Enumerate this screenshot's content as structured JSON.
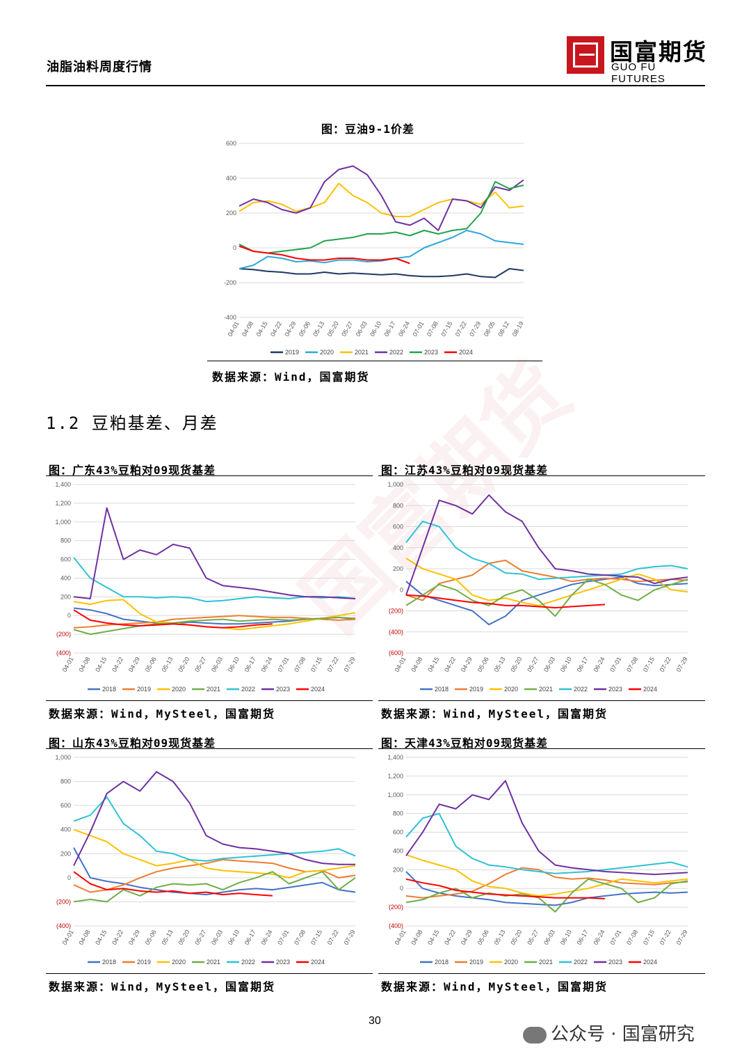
{
  "header": {
    "title": "油脂油料周度行情",
    "logo_cn": "国富期货",
    "logo_en": "GUO FU FUTURES"
  },
  "section_heading": "1.2 豆粕基差、月差",
  "footer": {
    "page": "30",
    "wechat": "公众号 · 国富研究"
  },
  "colors": {
    "2018": "#4472c4",
    "2019": "#ed7d31",
    "2020": "#ffc000",
    "2021": "#70ad47",
    "2022": "#2ec2d6",
    "2023": "#7030a0",
    "2024": "#ff0000",
    "brand": "#c8161e"
  },
  "chart_data": [
    {
      "id": "c1",
      "type": "line",
      "title": "图：豆油9-1价差",
      "source": "数据来源：Wind，国富期货",
      "x_ticks": [
        "04-01",
        "04-08",
        "04-15",
        "04-22",
        "04-29",
        "05-06",
        "05-13",
        "05-20",
        "05-27",
        "06-03",
        "06-10",
        "06-17",
        "06-24",
        "07-01",
        "07-08",
        "07-15",
        "07-22",
        "07-29",
        "08-05",
        "08-12",
        "08-19"
      ],
      "ylim": [
        -400,
        600
      ],
      "y_ticks": [
        "-400",
        "-200",
        "0",
        "200",
        "400",
        "600"
      ],
      "series": [
        {
          "name": "2019",
          "color": "#1f3864",
          "values": [
            -120,
            -125,
            -135,
            -140,
            -150,
            -150,
            -140,
            -150,
            -145,
            -150,
            -155,
            -150,
            -160,
            -165,
            -165,
            -160,
            -150,
            -165,
            -170,
            -120,
            -130
          ]
        },
        {
          "name": "2020",
          "color": "#2ea8d8",
          "values": [
            -120,
            -100,
            -50,
            -60,
            -80,
            -75,
            -85,
            -70,
            -70,
            -80,
            -75,
            -60,
            -50,
            0,
            30,
            60,
            100,
            80,
            40,
            30,
            20
          ]
        },
        {
          "name": "2021",
          "color": "#ffc000",
          "values": [
            210,
            260,
            270,
            250,
            210,
            230,
            260,
            370,
            300,
            260,
            200,
            180,
            180,
            220,
            260,
            280,
            270,
            250,
            320,
            230,
            240
          ]
        },
        {
          "name": "2022",
          "color": "#7030a0",
          "values": [
            240,
            280,
            260,
            220,
            200,
            230,
            380,
            450,
            470,
            420,
            300,
            150,
            130,
            170,
            100,
            280,
            270,
            230,
            350,
            330,
            390
          ]
        },
        {
          "name": "2023",
          "color": "#21a24a",
          "values": [
            20,
            -20,
            -30,
            -20,
            -10,
            0,
            40,
            50,
            60,
            80,
            80,
            90,
            70,
            100,
            80,
            100,
            110,
            200,
            380,
            340,
            360
          ]
        },
        {
          "name": "2024",
          "color": "#ff0000",
          "values": [
            10,
            -20,
            -30,
            -40,
            -60,
            -70,
            -70,
            -60,
            -60,
            -70,
            -70,
            -60,
            -90,
            null,
            null,
            null,
            null,
            null,
            null,
            null,
            null
          ]
        }
      ]
    },
    {
      "id": "c2",
      "type": "line",
      "title": "图：广东43%豆粕对09现货基差",
      "source": "数据来源：Wind，MySteel，国富期货",
      "x_ticks": [
        "04-01",
        "04-08",
        "04-15",
        "04-22",
        "04-29",
        "05-06",
        "05-13",
        "05-20",
        "05-27",
        "06-03",
        "06-10",
        "06-17",
        "06-24",
        "07-01",
        "07-08",
        "07-15",
        "07-22",
        "07-29"
      ],
      "ylim": [
        -400,
        1400
      ],
      "y_ticks": [
        "(400)",
        "(200)",
        "0",
        "200",
        "400",
        "600",
        "800",
        "1,000",
        "1,200",
        "1,400"
      ],
      "series": [
        {
          "name": "2018",
          "values": [
            80,
            60,
            20,
            -40,
            -60,
            -80,
            -90,
            -70,
            -80,
            -90,
            -90,
            -80,
            -70,
            -60,
            -40,
            -30,
            -20,
            -40
          ]
        },
        {
          "name": "2019",
          "values": [
            -130,
            -120,
            -100,
            -90,
            -80,
            -70,
            -40,
            -30,
            -20,
            -10,
            0,
            -10,
            -20,
            -20,
            -30,
            -40,
            -50,
            -40
          ]
        },
        {
          "name": "2020",
          "values": [
            150,
            120,
            160,
            170,
            20,
            -70,
            -80,
            -100,
            -120,
            -130,
            -150,
            -130,
            -110,
            -90,
            -60,
            -30,
            0,
            30
          ]
        },
        {
          "name": "2021",
          "values": [
            -150,
            -200,
            -170,
            -140,
            -110,
            -90,
            -80,
            -60,
            -50,
            -40,
            -60,
            -50,
            -40,
            -50,
            -40,
            -30,
            -20,
            -30
          ]
        },
        {
          "name": "2022",
          "values": [
            620,
            400,
            300,
            200,
            200,
            190,
            200,
            190,
            150,
            160,
            180,
            200,
            190,
            180,
            200,
            190,
            200,
            180
          ]
        },
        {
          "name": "2023",
          "values": [
            200,
            180,
            1150,
            600,
            700,
            650,
            760,
            720,
            400,
            320,
            300,
            280,
            250,
            220,
            200,
            200,
            190,
            180
          ]
        },
        {
          "name": "2024",
          "values": [
            60,
            -50,
            -80,
            -100,
            -110,
            -100,
            -90,
            -100,
            -120,
            -130,
            -120,
            -100,
            -90,
            null,
            null,
            null,
            null,
            null
          ]
        }
      ]
    },
    {
      "id": "c3",
      "type": "line",
      "title": "图：江苏43%豆粕对09现货基差",
      "source": "数据来源：Wind，MySteel，国富期货",
      "x_ticks": [
        "04-01",
        "04-08",
        "04-15",
        "04-22",
        "04-29",
        "05-06",
        "05-13",
        "05-20",
        "05-27",
        "06-03",
        "06-10",
        "06-17",
        "06-24",
        "07-01",
        "07-08",
        "07-15",
        "07-22",
        "07-29"
      ],
      "ylim": [
        -600,
        1000
      ],
      "y_ticks": [
        "(600)",
        "(400)",
        "(200)",
        "0",
        "200",
        "400",
        "600",
        "800",
        "1,000"
      ],
      "series": [
        {
          "name": "2018",
          "values": [
            80,
            -50,
            -100,
            -150,
            -200,
            -330,
            -250,
            -100,
            -50,
            0,
            50,
            80,
            100,
            120,
            60,
            40,
            50,
            60
          ]
        },
        {
          "name": "2019",
          "values": [
            -50,
            -100,
            60,
            100,
            140,
            250,
            280,
            180,
            150,
            120,
            80,
            100,
            110,
            100,
            80,
            90,
            100,
            90
          ]
        },
        {
          "name": "2020",
          "values": [
            300,
            200,
            150,
            100,
            -50,
            -100,
            -80,
            -120,
            -150,
            -100,
            -50,
            0,
            50,
            100,
            150,
            100,
            0,
            -20
          ]
        },
        {
          "name": "2021",
          "values": [
            -150,
            -50,
            50,
            0,
            -100,
            -150,
            -50,
            0,
            -100,
            -250,
            -50,
            100,
            50,
            -50,
            -100,
            0,
            50,
            100
          ]
        },
        {
          "name": "2022",
          "values": [
            450,
            650,
            600,
            400,
            300,
            250,
            160,
            150,
            100,
            110,
            120,
            130,
            140,
            150,
            200,
            220,
            230,
            200
          ]
        },
        {
          "name": "2023",
          "values": [
            -50,
            400,
            850,
            800,
            720,
            900,
            740,
            650,
            400,
            200,
            180,
            150,
            140,
            130,
            120,
            60,
            100,
            120
          ]
        },
        {
          "name": "2024",
          "values": [
            -50,
            -60,
            -80,
            -100,
            -120,
            -130,
            -150,
            -150,
            -160,
            -170,
            -160,
            -150,
            -140,
            null,
            null,
            null,
            null,
            null
          ]
        }
      ]
    },
    {
      "id": "c4",
      "type": "line",
      "title": "图：山东43%豆粕对09现货基差",
      "source": "数据来源：Wind，MySteel，国富期货",
      "x_ticks": [
        "04-01",
        "04-08",
        "04-15",
        "04-22",
        "04-29",
        "05-06",
        "05-13",
        "05-20",
        "05-27",
        "06-03",
        "06-10",
        "06-17",
        "06-24",
        "07-01",
        "07-08",
        "07-15",
        "07-22",
        "07-29"
      ],
      "ylim": [
        -400,
        1000
      ],
      "y_ticks": [
        "(400)",
        "(200)",
        "0",
        "200",
        "400",
        "600",
        "800",
        "1,000"
      ],
      "series": [
        {
          "name": "2018",
          "values": [
            250,
            0,
            -30,
            -50,
            -80,
            -100,
            -120,
            -130,
            -140,
            -120,
            -100,
            -90,
            -100,
            -80,
            -60,
            -40,
            -100,
            -120
          ]
        },
        {
          "name": "2019",
          "values": [
            -60,
            -120,
            -100,
            -60,
            0,
            50,
            80,
            100,
            120,
            150,
            140,
            130,
            120,
            80,
            50,
            60,
            0,
            20
          ]
        },
        {
          "name": "2020",
          "values": [
            400,
            350,
            300,
            200,
            150,
            100,
            120,
            150,
            80,
            60,
            50,
            40,
            30,
            0,
            50,
            60,
            80,
            100
          ]
        },
        {
          "name": "2021",
          "values": [
            -200,
            -180,
            -200,
            -100,
            -150,
            -80,
            -50,
            -60,
            -50,
            -100,
            -40,
            0,
            50,
            -50,
            0,
            50,
            -100,
            0
          ]
        },
        {
          "name": "2022",
          "values": [
            470,
            520,
            670,
            450,
            350,
            220,
            200,
            150,
            140,
            160,
            170,
            180,
            190,
            200,
            210,
            220,
            240,
            180
          ]
        },
        {
          "name": "2023",
          "values": [
            100,
            380,
            700,
            800,
            720,
            880,
            800,
            620,
            350,
            280,
            250,
            240,
            220,
            200,
            150,
            120,
            110,
            110
          ]
        },
        {
          "name": "2024",
          "values": [
            50,
            -50,
            -100,
            -90,
            -110,
            -120,
            -110,
            -130,
            -120,
            -140,
            -130,
            -140,
            -150,
            null,
            null,
            null,
            null,
            null
          ]
        }
      ]
    },
    {
      "id": "c5",
      "type": "line",
      "title": "图：天津43%豆粕对09现货基差",
      "source": "数据来源：Wind，MySteel，国富期货",
      "x_ticks": [
        "04-01",
        "04-08",
        "04-15",
        "04-22",
        "04-29",
        "05-06",
        "05-13",
        "05-20",
        "05-27",
        "06-03",
        "06-10",
        "06-17",
        "06-24",
        "07-01",
        "07-08",
        "07-15",
        "07-22",
        "07-29"
      ],
      "ylim": [
        -400,
        1400
      ],
      "y_ticks": [
        "(400)",
        "(200)",
        "0",
        "200",
        "400",
        "600",
        "800",
        "1,000",
        "1,200",
        "1,400"
      ],
      "series": [
        {
          "name": "2018",
          "values": [
            180,
            0,
            -50,
            -80,
            -100,
            -120,
            -150,
            -160,
            -170,
            -180,
            -150,
            -100,
            -80,
            -60,
            -50,
            -40,
            -50,
            -40
          ]
        },
        {
          "name": "2019",
          "values": [
            -80,
            -100,
            -80,
            -60,
            -30,
            50,
            150,
            220,
            200,
            120,
            100,
            110,
            90,
            60,
            50,
            40,
            60,
            70
          ]
        },
        {
          "name": "2020",
          "values": [
            360,
            300,
            250,
            200,
            80,
            20,
            0,
            -50,
            -80,
            -60,
            -30,
            0,
            50,
            100,
            80,
            60,
            80,
            100
          ]
        },
        {
          "name": "2021",
          "values": [
            -150,
            -120,
            -50,
            0,
            -100,
            -50,
            -80,
            -60,
            -100,
            -250,
            -50,
            100,
            50,
            0,
            -150,
            -100,
            50,
            80
          ]
        },
        {
          "name": "2022",
          "values": [
            550,
            750,
            800,
            450,
            320,
            250,
            230,
            200,
            180,
            160,
            170,
            180,
            200,
            220,
            240,
            260,
            280,
            230
          ]
        },
        {
          "name": "2023",
          "values": [
            350,
            600,
            900,
            850,
            1000,
            950,
            1150,
            700,
            400,
            250,
            220,
            200,
            180,
            170,
            160,
            150,
            160,
            170
          ]
        },
        {
          "name": "2024",
          "values": [
            100,
            60,
            30,
            -20,
            -40,
            -60,
            -70,
            -80,
            -90,
            -100,
            -100,
            -100,
            -110,
            null,
            null,
            null,
            null,
            null
          ]
        }
      ]
    }
  ]
}
